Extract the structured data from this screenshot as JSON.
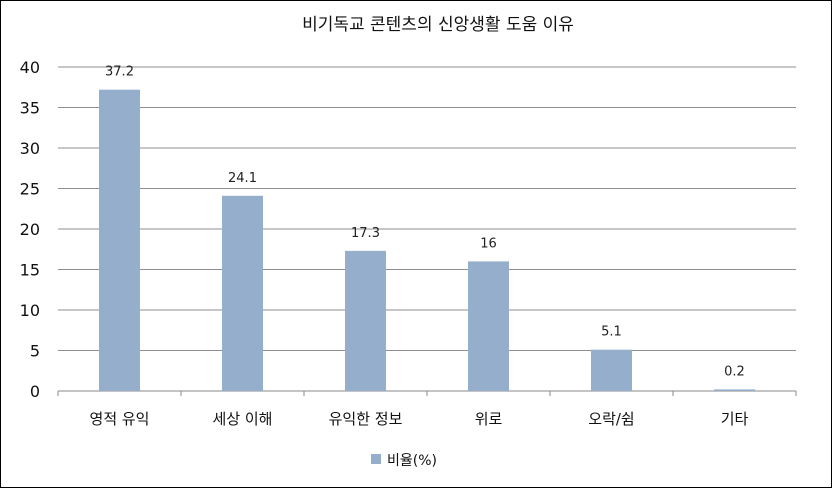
{
  "chart_data": {
    "type": "bar",
    "title": "비기독교 콘텐츠의 신앙생활 도움 이유",
    "categories": [
      "영적 유익",
      "세상 이해",
      "유익한 정보",
      "위로",
      "오락/쉼",
      "기타"
    ],
    "series": [
      {
        "name": "비율(%)",
        "values": [
          37.2,
          24.1,
          17.3,
          16,
          5.1,
          0.2
        ],
        "color": "#95aecb"
      }
    ],
    "data_labels": [
      "37.2",
      "24.1",
      "17.3",
      "16",
      "5.1",
      "0.2"
    ],
    "yticks": [
      "0",
      "5",
      "10",
      "15",
      "20",
      "25",
      "30",
      "35",
      "40"
    ],
    "ylim": [
      0,
      40
    ],
    "xlabel": "",
    "ylabel": "",
    "grid": true,
    "legend_position": "bottom"
  }
}
